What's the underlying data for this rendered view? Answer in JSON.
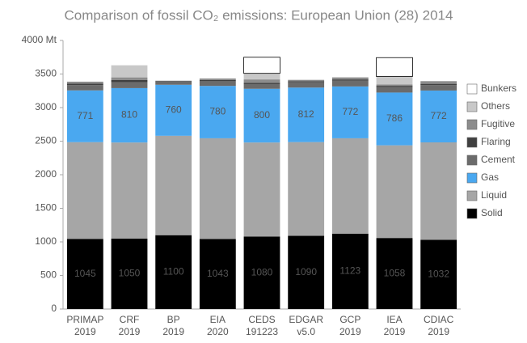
{
  "chart_data": {
    "type": "stacked_bar",
    "title": "Comparison of fossil CO₂ emissions: European Union (28) 2014",
    "categories": [
      [
        "PRIMAP",
        "2019"
      ],
      [
        "CRF",
        "2019"
      ],
      [
        "BP",
        "2019"
      ],
      [
        "EIA",
        "2020"
      ],
      [
        "CEDS",
        "191223"
      ],
      [
        "EDGAR",
        "v5.0"
      ],
      [
        "GCP",
        "2019"
      ],
      [
        "IEA",
        "2019"
      ],
      [
        "CDIAC",
        "2019"
      ]
    ],
    "series": [
      {
        "name": "Solid",
        "color": "#000000",
        "label_color": "#ffffff",
        "labels": true,
        "values": [
          1045,
          1050,
          1100,
          1043,
          1080,
          1090,
          1123,
          1058,
          1032
        ]
      },
      {
        "name": "Liquid",
        "color": "#a6a6a6",
        "label_color": "#ffffff",
        "labels": false,
        "values": [
          1440,
          1430,
          1480,
          1500,
          1400,
          1396,
          1420,
          1380,
          1450
        ]
      },
      {
        "name": "Gas",
        "color": "#4aa8f0",
        "label_color": "#000000",
        "labels": true,
        "values": [
          771,
          810,
          760,
          780,
          800,
          812,
          772,
          786,
          772
        ]
      },
      {
        "name": "Cement",
        "color": "#6b6b6b",
        "label_color": "#ffffff",
        "labels": false,
        "values": [
          80,
          90,
          60,
          70,
          70,
          80,
          85,
          80,
          80
        ]
      },
      {
        "name": "Flaring",
        "color": "#404040",
        "label_color": "#ffffff",
        "labels": false,
        "values": [
          20,
          30,
          null,
          20,
          20,
          15,
          20,
          20,
          20
        ]
      },
      {
        "name": "Fugitive",
        "color": "#8c8c8c",
        "label_color": "#ffffff",
        "labels": false,
        "values": [
          30,
          40,
          null,
          20,
          50,
          20,
          30,
          20,
          40
        ]
      },
      {
        "name": "Others",
        "color": "#c8c8c8",
        "label_color": "#000000",
        "labels": false,
        "values": [
          null,
          180,
          null,
          null,
          90,
          null,
          null,
          120,
          null
        ]
      },
      {
        "name": "Bunkers",
        "color": "#ffffff",
        "label_color": "#000000",
        "labels": false,
        "values": [
          null,
          null,
          null,
          null,
          240,
          null,
          null,
          280,
          null
        ]
      }
    ],
    "ylim": [
      0,
      4000
    ],
    "yticks": [
      0,
      500,
      1000,
      1500,
      2000,
      2500,
      3000,
      3500,
      {
        "value": 4000,
        "label": "4000 Mt"
      }
    ],
    "grid": false
  }
}
